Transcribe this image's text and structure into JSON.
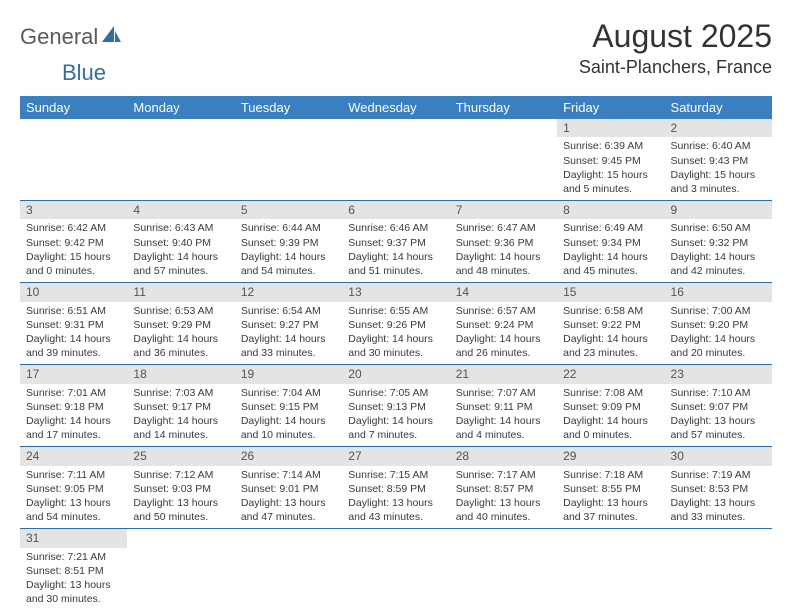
{
  "logo": {
    "general": "General",
    "blue": "Blue"
  },
  "title": "August 2025",
  "location": "Saint-Planchers, France",
  "colors": {
    "header_bg": "#3a80c1",
    "accent": "#2f6fa8",
    "daynum_bg": "#e4e4e4"
  },
  "dow": [
    "Sunday",
    "Monday",
    "Tuesday",
    "Wednesday",
    "Thursday",
    "Friday",
    "Saturday"
  ],
  "weeks": [
    [
      null,
      null,
      null,
      null,
      null,
      {
        "n": "1",
        "sr": "6:39 AM",
        "ss": "9:45 PM",
        "dh": "15",
        "dm": "5"
      },
      {
        "n": "2",
        "sr": "6:40 AM",
        "ss": "9:43 PM",
        "dh": "15",
        "dm": "3"
      }
    ],
    [
      {
        "n": "3",
        "sr": "6:42 AM",
        "ss": "9:42 PM",
        "dh": "15",
        "dm": "0"
      },
      {
        "n": "4",
        "sr": "6:43 AM",
        "ss": "9:40 PM",
        "dh": "14",
        "dm": "57"
      },
      {
        "n": "5",
        "sr": "6:44 AM",
        "ss": "9:39 PM",
        "dh": "14",
        "dm": "54"
      },
      {
        "n": "6",
        "sr": "6:46 AM",
        "ss": "9:37 PM",
        "dh": "14",
        "dm": "51"
      },
      {
        "n": "7",
        "sr": "6:47 AM",
        "ss": "9:36 PM",
        "dh": "14",
        "dm": "48"
      },
      {
        "n": "8",
        "sr": "6:49 AM",
        "ss": "9:34 PM",
        "dh": "14",
        "dm": "45"
      },
      {
        "n": "9",
        "sr": "6:50 AM",
        "ss": "9:32 PM",
        "dh": "14",
        "dm": "42"
      }
    ],
    [
      {
        "n": "10",
        "sr": "6:51 AM",
        "ss": "9:31 PM",
        "dh": "14",
        "dm": "39"
      },
      {
        "n": "11",
        "sr": "6:53 AM",
        "ss": "9:29 PM",
        "dh": "14",
        "dm": "36"
      },
      {
        "n": "12",
        "sr": "6:54 AM",
        "ss": "9:27 PM",
        "dh": "14",
        "dm": "33"
      },
      {
        "n": "13",
        "sr": "6:55 AM",
        "ss": "9:26 PM",
        "dh": "14",
        "dm": "30"
      },
      {
        "n": "14",
        "sr": "6:57 AM",
        "ss": "9:24 PM",
        "dh": "14",
        "dm": "26"
      },
      {
        "n": "15",
        "sr": "6:58 AM",
        "ss": "9:22 PM",
        "dh": "14",
        "dm": "23"
      },
      {
        "n": "16",
        "sr": "7:00 AM",
        "ss": "9:20 PM",
        "dh": "14",
        "dm": "20"
      }
    ],
    [
      {
        "n": "17",
        "sr": "7:01 AM",
        "ss": "9:18 PM",
        "dh": "14",
        "dm": "17"
      },
      {
        "n": "18",
        "sr": "7:03 AM",
        "ss": "9:17 PM",
        "dh": "14",
        "dm": "14"
      },
      {
        "n": "19",
        "sr": "7:04 AM",
        "ss": "9:15 PM",
        "dh": "14",
        "dm": "10"
      },
      {
        "n": "20",
        "sr": "7:05 AM",
        "ss": "9:13 PM",
        "dh": "14",
        "dm": "7"
      },
      {
        "n": "21",
        "sr": "7:07 AM",
        "ss": "9:11 PM",
        "dh": "14",
        "dm": "4"
      },
      {
        "n": "22",
        "sr": "7:08 AM",
        "ss": "9:09 PM",
        "dh": "14",
        "dm": "0"
      },
      {
        "n": "23",
        "sr": "7:10 AM",
        "ss": "9:07 PM",
        "dh": "13",
        "dm": "57"
      }
    ],
    [
      {
        "n": "24",
        "sr": "7:11 AM",
        "ss": "9:05 PM",
        "dh": "13",
        "dm": "54"
      },
      {
        "n": "25",
        "sr": "7:12 AM",
        "ss": "9:03 PM",
        "dh": "13",
        "dm": "50"
      },
      {
        "n": "26",
        "sr": "7:14 AM",
        "ss": "9:01 PM",
        "dh": "13",
        "dm": "47"
      },
      {
        "n": "27",
        "sr": "7:15 AM",
        "ss": "8:59 PM",
        "dh": "13",
        "dm": "43"
      },
      {
        "n": "28",
        "sr": "7:17 AM",
        "ss": "8:57 PM",
        "dh": "13",
        "dm": "40"
      },
      {
        "n": "29",
        "sr": "7:18 AM",
        "ss": "8:55 PM",
        "dh": "13",
        "dm": "37"
      },
      {
        "n": "30",
        "sr": "7:19 AM",
        "ss": "8:53 PM",
        "dh": "13",
        "dm": "33"
      }
    ],
    [
      {
        "n": "31",
        "sr": "7:21 AM",
        "ss": "8:51 PM",
        "dh": "13",
        "dm": "30"
      },
      null,
      null,
      null,
      null,
      null,
      null
    ]
  ]
}
